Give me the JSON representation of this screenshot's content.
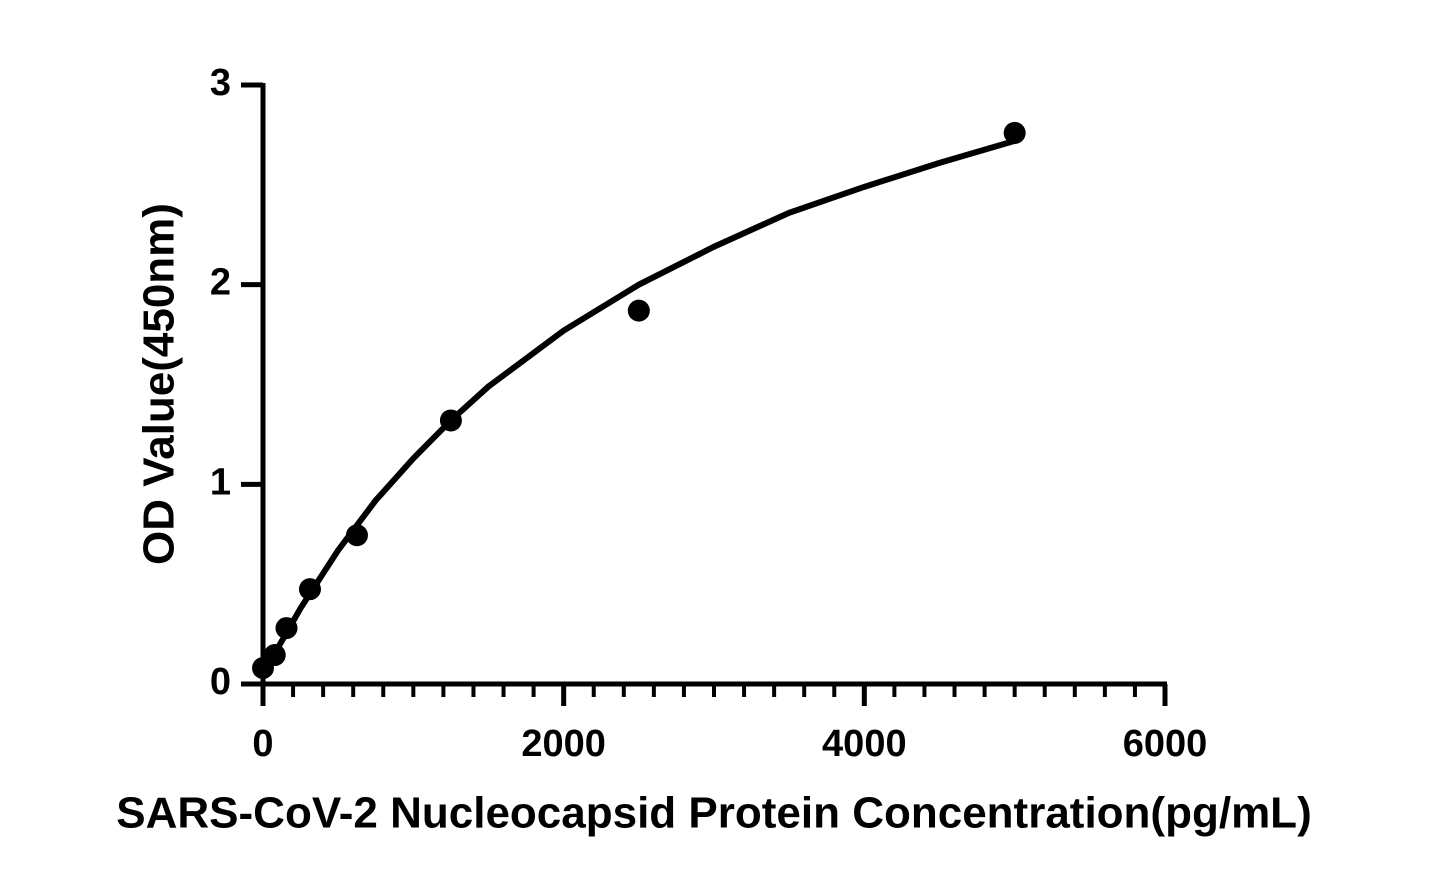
{
  "chart_data": {
    "type": "scatter",
    "xlabel": "SARS-CoV-2 Nucleocapsid Protein Concentration(pg/mL)",
    "ylabel": "OD Value(450nm)",
    "series": [
      {
        "type": "scatter",
        "color": "#000000",
        "x": [
          0,
          78.125,
          156.25,
          312.5,
          625,
          1250,
          2500,
          5000
        ],
        "values": [
          0.08,
          0.145,
          0.28,
          0.475,
          0.745,
          1.32,
          1.87,
          2.76
        ]
      },
      {
        "type": "line",
        "color": "#000000",
        "x": [
          0,
          250,
          500,
          750,
          1000,
          1250,
          1500,
          2000,
          2500,
          3000,
          3500,
          4000,
          4500,
          5000
        ],
        "values": [
          0.05,
          0.38,
          0.67,
          0.92,
          1.13,
          1.32,
          1.49,
          1.77,
          2.0,
          2.19,
          2.36,
          2.49,
          2.61,
          2.72
        ]
      }
    ],
    "xlim": [
      0,
      6000
    ],
    "xticks": [
      0,
      2000,
      4000,
      6000
    ],
    "xminorstep": 200,
    "ylim": [
      0,
      3
    ],
    "yticks": [
      0,
      1,
      2,
      3
    ]
  }
}
